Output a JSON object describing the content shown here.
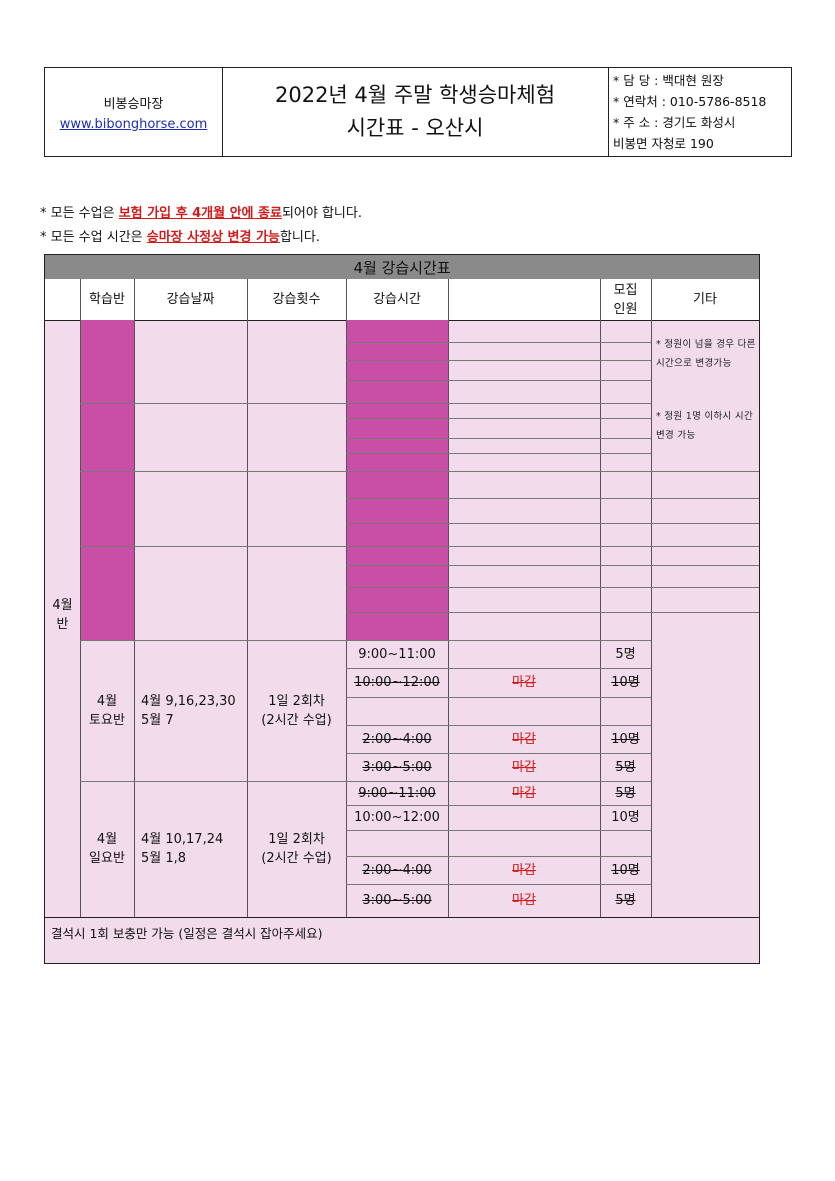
{
  "header": {
    "org_name": "비봉승마장",
    "website": "www.bibonghorse.com",
    "title_line1": "2022년 4월 주말 학생승마체험",
    "title_line2": "시간표 - 오산시",
    "contact_manager": "* 담 당 : 백대현 원장",
    "contact_phone": "* 연락처 : 010-5786-8518",
    "contact_address1": "* 주 소 : 경기도 화성시",
    "contact_address2": "비봉면 자청로 190"
  },
  "notes": {
    "note1_prefix": "* 모든 수업은 ",
    "note1_highlight": "보험 가입 후 4개월 안에 종료",
    "note1_suffix": "되어야 합니다.",
    "note2_prefix": "* 모든 수업 시간은 ",
    "note2_highlight": "승마장 사정상 변경 가능",
    "note2_suffix": "합니다."
  },
  "table": {
    "title": "4월 강습시간표",
    "columns": {
      "class": "학습반",
      "dates": "강습날짜",
      "sessions": "강습횟수",
      "times": "강습시간",
      "capacity_line1": "모집",
      "capacity_line2": "인원",
      "etc": "기타"
    },
    "month_label_line1": "4월",
    "month_label_line2": "반",
    "etc_note1": "* 정원이 넘을 경우 다른시간으로 변경가능",
    "etc_note2": "* 정원 1명 이하시 시간 변경 가능",
    "saturday": {
      "name_line1": "4월",
      "name_line2": "토요반",
      "dates_line1": "4월 9,16,23,30",
      "dates_line2": "5월 7",
      "sessions_line1": "1일 2회차",
      "sessions_line2": "(2시간 수업)",
      "rows": [
        {
          "time": "9:00~11:00",
          "status": "",
          "capacity": "5명",
          "closed": false
        },
        {
          "time": "10:00~12:00",
          "status": "마감",
          "capacity": "10명",
          "closed": true
        },
        {
          "time": "",
          "status": "",
          "capacity": "",
          "closed": false
        },
        {
          "time": "2:00~4:00",
          "status": "마감",
          "capacity": "10명",
          "closed": true
        },
        {
          "time": "3:00~5:00",
          "status": "마감",
          "capacity": "5명",
          "closed": true
        }
      ]
    },
    "sunday": {
      "name_line1": "4월",
      "name_line2": "일요반",
      "dates_line1": "4월 10,17,24",
      "dates_line2": "5월 1,8",
      "sessions_line1": "1일 2회차",
      "sessions_line2": "(2시간 수업)",
      "rows": [
        {
          "time": "9:00~11:00",
          "status": "마감",
          "capacity": "5명",
          "closed": true
        },
        {
          "time": "10:00~12:00",
          "status": "",
          "capacity": "10명",
          "closed": false
        },
        {
          "time": "",
          "status": "",
          "capacity": "",
          "closed": false
        },
        {
          "time": "2:00~4:00",
          "status": "마감",
          "capacity": "10명",
          "closed": true
        },
        {
          "time": "3:00~5:00",
          "status": "마감",
          "capacity": "5명",
          "closed": true
        }
      ]
    },
    "footer": "결석시 1회 보충만 가능 (일정은 결석시 잡아주세요)"
  },
  "colors": {
    "magenta": "#c84ea6",
    "pink_bg": "#f2dcec",
    "title_gray": "#8a8a8a",
    "closed_red": "#d31a1a"
  }
}
